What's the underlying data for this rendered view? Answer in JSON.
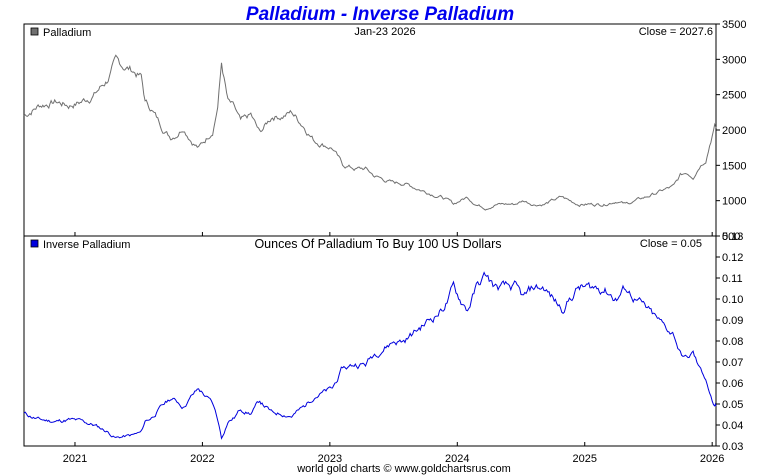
{
  "title": "Palladium - Inverse Palladium",
  "footer": "world gold charts © www.goldchartsrus.com",
  "x_axis": {
    "start": 2020.6,
    "end": 2026.03,
    "ticks": [
      2021,
      2022,
      2023,
      2024,
      2025,
      2026
    ],
    "tick_labels": [
      "2021",
      "2022",
      "2023",
      "2024",
      "2025",
      "2026"
    ]
  },
  "colors": {
    "price": "#707070",
    "inverse": "#0000dd",
    "title": "#0000ee"
  },
  "chart_data": [
    {
      "type": "line",
      "name": "Palladium",
      "legend": "Palladium",
      "date_label": "Jan-23  2026",
      "close_label": "Close = 2027.6",
      "ylim": [
        500,
        3500
      ],
      "yticks": [
        500,
        1000,
        1500,
        2000,
        2500,
        3000,
        3500
      ],
      "ytick_labels": [
        "500",
        "1000",
        "1500",
        "2000",
        "2500",
        "3000",
        "3500"
      ],
      "x": [
        2020.6,
        2020.72,
        2020.85,
        2020.95,
        2021.05,
        2021.15,
        2021.25,
        2021.32,
        2021.38,
        2021.45,
        2021.52,
        2021.55,
        2021.6,
        2021.68,
        2021.75,
        2021.8,
        2021.85,
        2021.92,
        2021.97,
        2022.02,
        2022.08,
        2022.12,
        2022.15,
        2022.2,
        2022.25,
        2022.3,
        2022.38,
        2022.45,
        2022.55,
        2022.62,
        2022.7,
        2022.8,
        2022.88,
        2022.95,
        2023.02,
        2023.1,
        2023.15,
        2023.2,
        2023.28,
        2023.35,
        2023.42,
        2023.5,
        2023.58,
        2023.65,
        2023.72,
        2023.8,
        2023.88,
        2023.93,
        2023.97,
        2024.02,
        2024.08,
        2024.15,
        2024.22,
        2024.3,
        2024.38,
        2024.45,
        2024.52,
        2024.6,
        2024.68,
        2024.75,
        2024.82,
        2024.88,
        2024.95,
        2025.05,
        2025.15,
        2025.25,
        2025.32,
        2025.4,
        2025.48,
        2025.55,
        2025.62,
        2025.7,
        2025.75,
        2025.8,
        2025.85,
        2025.9,
        2025.95,
        2026.0,
        2026.02,
        2026.03
      ],
      "values": [
        2200,
        2350,
        2400,
        2350,
        2400,
        2500,
        2700,
        2950,
        2900,
        2850,
        2750,
        2400,
        2300,
        2050,
        1900,
        1950,
        2050,
        1850,
        1750,
        1850,
        2000,
        2350,
        2950,
        2400,
        2300,
        2100,
        2200,
        1950,
        2200,
        2200,
        2250,
        2050,
        1850,
        1800,
        1750,
        1500,
        1480,
        1450,
        1450,
        1350,
        1300,
        1250,
        1250,
        1200,
        1150,
        1100,
        1050,
        1000,
        950,
        1000,
        1050,
        950,
        900,
        950,
        950,
        950,
        1000,
        950,
        950,
        1000,
        1050,
        1000,
        950,
        950,
        950,
        1000,
        950,
        1000,
        1050,
        1100,
        1150,
        1200,
        1350,
        1400,
        1350,
        1500,
        1600,
        1950,
        2050,
        2027.6
      ]
    },
    {
      "type": "line",
      "name": "Inverse Palladium",
      "legend": "Inverse Palladium",
      "title": "Ounces Of Palladium To Buy 100 US Dollars",
      "close_label": "Close = 0.05",
      "ylim": [
        0.03,
        0.13
      ],
      "yticks": [
        0.03,
        0.04,
        0.05,
        0.06,
        0.07,
        0.08,
        0.09,
        0.1,
        0.11,
        0.12,
        0.13
      ],
      "ytick_labels": [
        "0.03",
        "0.04",
        "0.05",
        "0.06",
        "0.07",
        "0.08",
        "0.09",
        "0.10",
        "0.11",
        "0.12",
        "0.13"
      ],
      "x": [
        2020.6,
        2020.72,
        2020.85,
        2020.95,
        2021.05,
        2021.15,
        2021.25,
        2021.32,
        2021.38,
        2021.45,
        2021.52,
        2021.55,
        2021.6,
        2021.68,
        2021.75,
        2021.8,
        2021.85,
        2021.92,
        2021.97,
        2022.02,
        2022.08,
        2022.12,
        2022.15,
        2022.2,
        2022.25,
        2022.3,
        2022.38,
        2022.45,
        2022.55,
        2022.62,
        2022.7,
        2022.8,
        2022.88,
        2022.95,
        2023.02,
        2023.1,
        2023.15,
        2023.2,
        2023.28,
        2023.35,
        2023.42,
        2023.5,
        2023.58,
        2023.65,
        2023.72,
        2023.8,
        2023.88,
        2023.93,
        2023.97,
        2024.02,
        2024.08,
        2024.15,
        2024.22,
        2024.3,
        2024.38,
        2024.45,
        2024.52,
        2024.6,
        2024.68,
        2024.75,
        2024.82,
        2024.88,
        2024.95,
        2025.05,
        2025.15,
        2025.25,
        2025.32,
        2025.4,
        2025.48,
        2025.55,
        2025.62,
        2025.7,
        2025.75,
        2025.8,
        2025.85,
        2025.9,
        2025.95,
        2026.0,
        2026.02,
        2026.03
      ],
      "values": [
        0.0455,
        0.0425,
        0.0417,
        0.0425,
        0.0417,
        0.04,
        0.037,
        0.0339,
        0.0345,
        0.0351,
        0.0364,
        0.0417,
        0.0435,
        0.0488,
        0.0526,
        0.0513,
        0.0488,
        0.0541,
        0.0571,
        0.0541,
        0.05,
        0.0426,
        0.0339,
        0.0417,
        0.0435,
        0.0476,
        0.0455,
        0.0513,
        0.0455,
        0.0455,
        0.0444,
        0.0488,
        0.0541,
        0.0556,
        0.0571,
        0.0667,
        0.0676,
        0.069,
        0.069,
        0.0741,
        0.0769,
        0.08,
        0.08,
        0.0833,
        0.087,
        0.0909,
        0.0952,
        0.1,
        0.1053,
        0.1,
        0.0952,
        0.1053,
        0.1111,
        0.1053,
        0.1053,
        0.1053,
        0.1,
        0.1053,
        0.1053,
        0.1,
        0.0952,
        0.1,
        0.1053,
        0.1053,
        0.1053,
        0.1,
        0.1053,
        0.1,
        0.0952,
        0.0909,
        0.087,
        0.0833,
        0.0741,
        0.0714,
        0.0741,
        0.0667,
        0.0625,
        0.0513,
        0.0488,
        0.049
      ]
    }
  ]
}
